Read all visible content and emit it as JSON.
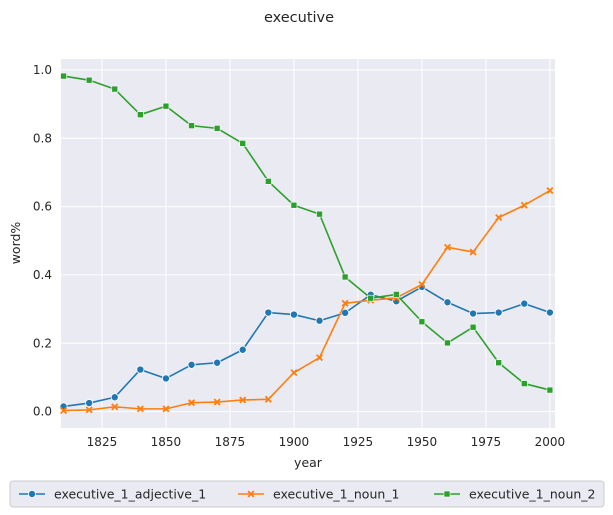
{
  "chart_data": {
    "type": "line",
    "title": "executive",
    "xlabel": "year",
    "ylabel": "word%",
    "xlim": [
      1809,
      2002
    ],
    "ylim": [
      -0.048,
      1.032
    ],
    "xticks": [
      1825,
      1850,
      1875,
      1900,
      1925,
      1950,
      1975,
      2000
    ],
    "yticks": [
      0.0,
      0.2,
      0.4,
      0.6,
      0.8,
      1.0
    ],
    "grid": true,
    "legend_position": "bottom",
    "x": [
      1810,
      1820,
      1830,
      1840,
      1850,
      1860,
      1870,
      1880,
      1890,
      1900,
      1910,
      1920,
      1930,
      1940,
      1950,
      1960,
      1970,
      1980,
      1990,
      2000
    ],
    "series": [
      {
        "name": "executive_1_adjective_1",
        "color": "#1f77b4",
        "marker": "circle",
        "values": [
          0.015,
          0.025,
          0.042,
          0.123,
          0.097,
          0.137,
          0.143,
          0.181,
          0.29,
          0.284,
          0.266,
          0.289,
          0.342,
          0.323,
          0.365,
          0.32,
          0.287,
          0.29,
          0.316,
          0.29
        ]
      },
      {
        "name": "executive_1_noun_1",
        "color": "#ff7f0e",
        "marker": "x",
        "values": [
          0.003,
          0.005,
          0.014,
          0.008,
          0.008,
          0.026,
          0.028,
          0.034,
          0.036,
          0.114,
          0.158,
          0.317,
          0.326,
          0.333,
          0.372,
          0.481,
          0.467,
          0.568,
          0.604,
          0.647
        ]
      },
      {
        "name": "executive_1_noun_2",
        "color": "#2ca02c",
        "marker": "square",
        "values": [
          0.982,
          0.97,
          0.944,
          0.869,
          0.894,
          0.837,
          0.829,
          0.785,
          0.674,
          0.604,
          0.578,
          0.394,
          0.332,
          0.343,
          0.263,
          0.201,
          0.247,
          0.143,
          0.082,
          0.063
        ]
      }
    ]
  }
}
